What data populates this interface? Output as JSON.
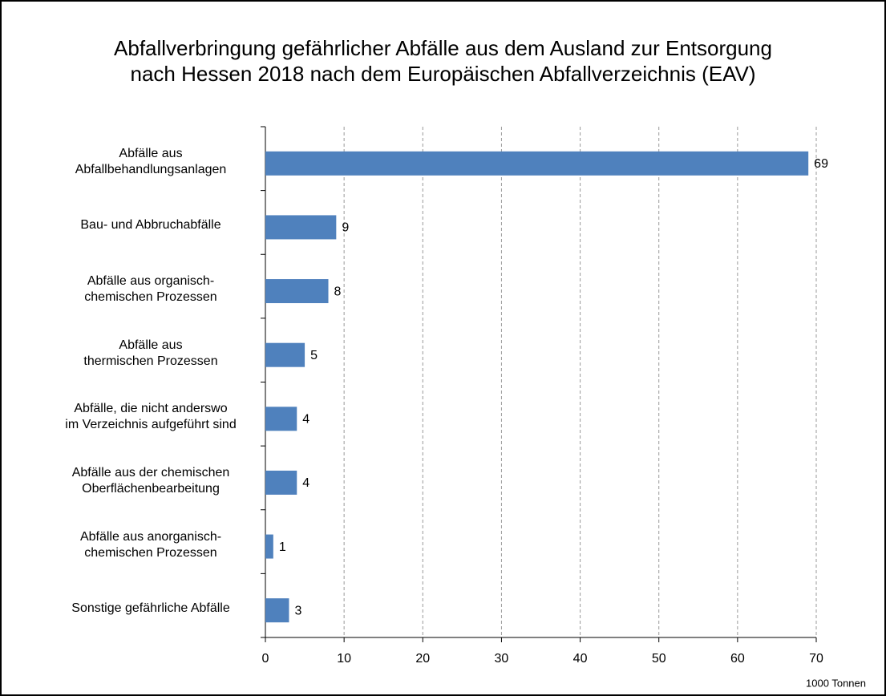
{
  "chart_data": {
    "type": "barh",
    "title": "Abfallverbringung gefährlicher Abfälle aus dem Ausland zur Entsorgung\nnach Hessen 2018 nach dem Europäischen Abfallverzeichnis (EAV)",
    "categories": [
      "Abfälle aus\nAbfallbehandlungsanlagen",
      "Bau- und Abbruchabfälle",
      "Abfälle aus organisch-\nchemischen Prozessen",
      "Abfälle aus\nthermischen Prozessen",
      "Abfälle, die nicht anderswo\nim Verzeichnis aufgeführt sind",
      "Abfälle aus der chemischen\nOberflächenbearbeitung",
      "Abfälle aus anorganisch-\nchemischen Prozessen",
      "Sonstige gefährliche Abfälle"
    ],
    "values": [
      69,
      9,
      8,
      5,
      4,
      4,
      1,
      3
    ],
    "color": "#4f81bd",
    "xlim": [
      0,
      70
    ],
    "xticks": [
      0,
      10,
      20,
      30,
      40,
      50,
      60,
      70
    ],
    "x_label": "1000 Tonnen",
    "grid": true
  }
}
